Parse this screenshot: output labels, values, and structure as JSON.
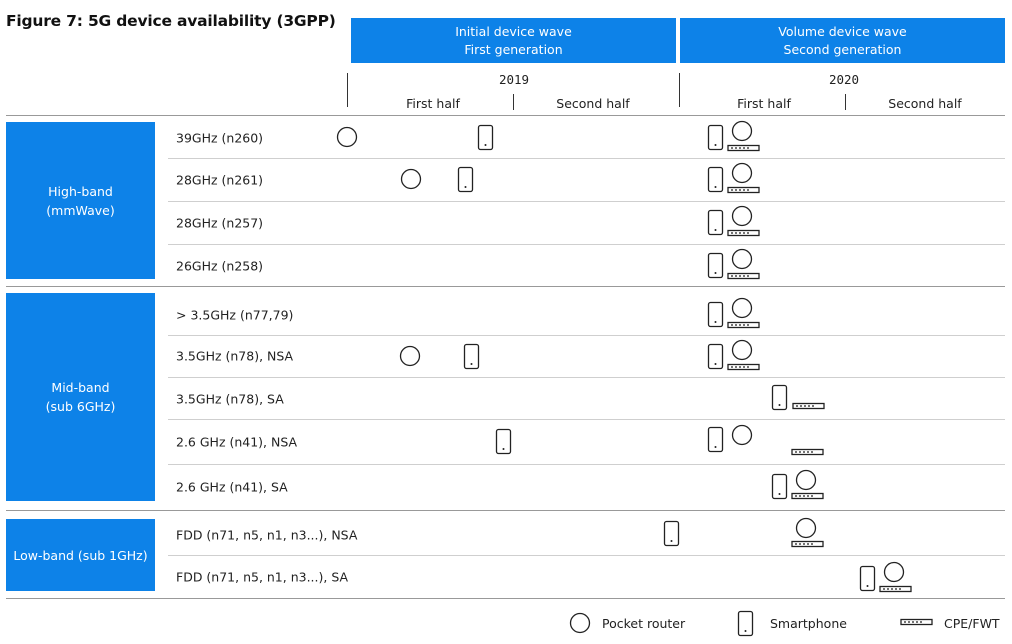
{
  "figure": {
    "title": "Figure 7: 5G device availability (3GPP)"
  },
  "waves": [
    {
      "line1": "Initial device wave",
      "line2": "First generation"
    },
    {
      "line1": "Volume device wave",
      "line2": "Second generation"
    }
  ],
  "years": [
    "2019",
    "2020"
  ],
  "halves": [
    "First half",
    "Second half",
    "First half",
    "Second half"
  ],
  "bands": [
    {
      "line1": "High-band",
      "line2": "(mmWave)"
    },
    {
      "line1": "Mid-band",
      "line2": "(sub 6GHz)"
    },
    {
      "line1": "Low-band (sub 1GHz)",
      "line2": ""
    }
  ],
  "rows": [
    {
      "label": "39GHz (n260)"
    },
    {
      "label": "28GHz (n261)"
    },
    {
      "label": "28GHz (n257)"
    },
    {
      "label": "26GHz (n258)"
    },
    {
      "label": "> 3.5GHz (n77,79)"
    },
    {
      "label": "3.5GHz (n78), NSA"
    },
    {
      "label": "3.5GHz (n78), SA"
    },
    {
      "label": "2.6 GHz (n41), NSA"
    },
    {
      "label": "2.6 GHz (n41), SA"
    },
    {
      "label": "FDD (n71, n5, n1, n3...), NSA"
    },
    {
      "label": "FDD (n71, n5, n1, n3...), SA"
    }
  ],
  "legend": {
    "router": "Pocket router",
    "phone": "Smartphone",
    "cpe": "CPE/FWT"
  },
  "colors": {
    "accent": "#0d82e8"
  }
}
